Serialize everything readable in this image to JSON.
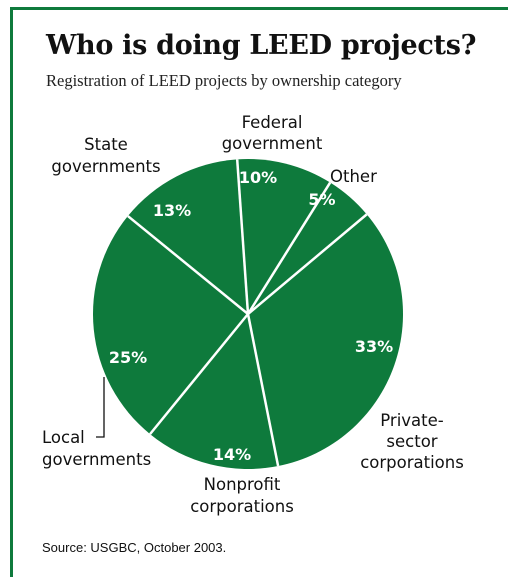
{
  "title": "Who is doing LEED projects?",
  "subtitle": "Registration of LEED projects by ownership category",
  "source": "Source: USGBC, October 2003.",
  "colors": {
    "slice": "#0e7a3c",
    "frame": "#0e7a3c",
    "divider": "#ffffff"
  },
  "chart_data": {
    "type": "pie",
    "title": "Who is doing LEED projects?",
    "subtitle": "Registration of LEED projects by ownership category",
    "unit": "%",
    "slices": [
      {
        "label": "Other",
        "value": 5,
        "value_label": "5%"
      },
      {
        "label": "Private-sector corporations",
        "label_lines": [
          "Private-",
          "sector",
          "corporations"
        ],
        "value": 33,
        "value_label": "33%"
      },
      {
        "label": "Nonprofit corporations",
        "label_lines": [
          "Nonprofit",
          "corporations"
        ],
        "value": 14,
        "value_label": "14%"
      },
      {
        "label": "Local governments",
        "label_lines": [
          "Local",
          "governments"
        ],
        "value": 25,
        "value_label": "25%"
      },
      {
        "label": "State governments",
        "label_lines": [
          "State",
          "governments"
        ],
        "value": 13,
        "value_label": "13%"
      },
      {
        "label": "Federal government",
        "label_lines": [
          "Federal",
          "government"
        ],
        "value": 10,
        "value_label": "10%"
      }
    ]
  }
}
